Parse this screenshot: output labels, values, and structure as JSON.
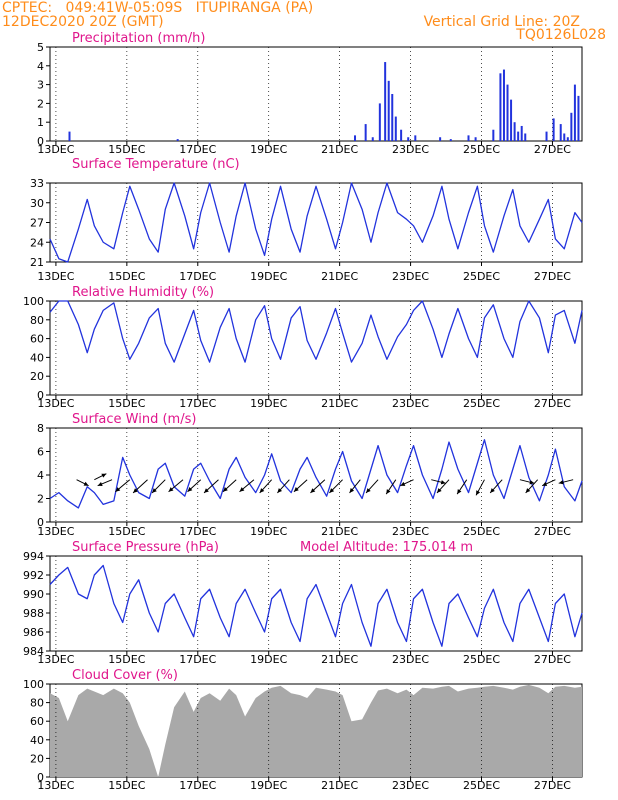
{
  "header": {
    "line1_left": "CPTEC:   049:41W-05:09S   ITUPIRANGA (PA)",
    "line2_left": "12DEC2020 20Z (GMT)",
    "line1_right": "Vertical Grid Line: 20Z",
    "line2_right": "TQ0126L028"
  },
  "colors": {
    "header": "#ff8c1a",
    "title": "#e0168c",
    "series": "#2233dd",
    "cloud": "#a9a9a9",
    "axis": "#000000"
  },
  "x_tick_labels": [
    "13DEC",
    "15DEC",
    "17DEC",
    "19DEC",
    "21DEC",
    "23DEC",
    "25DEC",
    "27DEC"
  ],
  "chart_data": [
    {
      "type": "bar",
      "title": "Precipitation (mm/h)",
      "ylim": [
        0,
        5
      ],
      "yticks": [
        0,
        1,
        2,
        3,
        4,
        5
      ],
      "x_unit": "days since 12DEC2020 20Z",
      "x": [
        0.55,
        3.6,
        8.6,
        8.9,
        9.1,
        9.3,
        9.45,
        9.55,
        9.65,
        9.75,
        9.9,
        10.1,
        10.3,
        11.0,
        11.3,
        11.8,
        12.0,
        12.5,
        12.7,
        12.8,
        12.9,
        13.0,
        13.1,
        13.2,
        13.3,
        13.4,
        14.0,
        14.2,
        14.4,
        14.5,
        14.6,
        14.7,
        14.8,
        14.9
      ],
      "values": [
        0.5,
        0.1,
        0.3,
        0.9,
        0.2,
        2.0,
        4.2,
        3.2,
        2.5,
        1.3,
        0.6,
        0.2,
        0.3,
        0.2,
        0.1,
        0.3,
        0.2,
        0.6,
        3.6,
        3.8,
        3.0,
        2.2,
        1.0,
        0.5,
        0.8,
        0.4,
        0.5,
        1.2,
        0.9,
        0.4,
        0.2,
        1.5,
        3.0,
        2.4
      ]
    },
    {
      "type": "line",
      "title": "Surface Temperature (nC)",
      "ylim": [
        21,
        33
      ],
      "yticks": [
        21,
        24,
        27,
        30,
        33
      ],
      "x_unit": "days since 12DEC2020 20Z",
      "x": [
        0.0,
        0.25,
        0.5,
        0.8,
        1.05,
        1.25,
        1.5,
        1.8,
        2.05,
        2.25,
        2.5,
        2.8,
        3.05,
        3.25,
        3.5,
        3.8,
        4.05,
        4.25,
        4.5,
        4.8,
        5.05,
        5.25,
        5.5,
        5.8,
        6.05,
        6.25,
        6.5,
        6.8,
        7.05,
        7.25,
        7.5,
        7.8,
        8.05,
        8.25,
        8.5,
        8.8,
        9.05,
        9.25,
        9.5,
        9.8,
        10.05,
        10.25,
        10.5,
        10.8,
        11.05,
        11.25,
        11.5,
        11.8,
        12.05,
        12.25,
        12.5,
        12.8,
        13.05,
        13.25,
        13.5,
        13.8,
        14.05,
        14.25,
        14.5,
        14.8,
        15.0
      ],
      "values": [
        24.5,
        21.5,
        21.0,
        26.0,
        30.5,
        26.5,
        24.0,
        23.0,
        28.5,
        32.5,
        29.0,
        24.5,
        22.5,
        29.0,
        33.0,
        28.0,
        23.0,
        28.5,
        33.0,
        27.0,
        22.5,
        28.0,
        33.0,
        26.0,
        22.0,
        27.5,
        32.5,
        26.0,
        22.5,
        28.0,
        32.5,
        27.5,
        23.0,
        27.0,
        33.0,
        29.0,
        24.0,
        28.5,
        33.0,
        28.5,
        27.5,
        26.5,
        24.0,
        28.0,
        32.5,
        27.5,
        23.0,
        28.5,
        32.5,
        26.5,
        22.5,
        28.0,
        32.0,
        26.5,
        24.0,
        27.5,
        30.5,
        24.5,
        23.0,
        28.5,
        27.0
      ]
    },
    {
      "type": "line",
      "title": "Relative Humidity (%)",
      "ylim": [
        0,
        100
      ],
      "yticks": [
        0,
        20,
        40,
        60,
        80,
        100
      ],
      "x_unit": "days since 12DEC2020 20Z",
      "x": [
        0.0,
        0.25,
        0.5,
        0.8,
        1.05,
        1.25,
        1.5,
        1.8,
        2.05,
        2.25,
        2.5,
        2.8,
        3.05,
        3.25,
        3.5,
        3.8,
        4.05,
        4.25,
        4.5,
        4.8,
        5.05,
        5.25,
        5.5,
        5.8,
        6.05,
        6.25,
        6.5,
        6.8,
        7.05,
        7.25,
        7.5,
        7.8,
        8.05,
        8.25,
        8.5,
        8.8,
        9.05,
        9.25,
        9.5,
        9.8,
        10.05,
        10.25,
        10.5,
        10.8,
        11.05,
        11.25,
        11.5,
        11.8,
        12.05,
        12.25,
        12.5,
        12.8,
        13.05,
        13.25,
        13.5,
        13.8,
        14.05,
        14.25,
        14.5,
        14.8,
        15.0
      ],
      "values": [
        88.0,
        100.0,
        100.0,
        75.0,
        45.0,
        70.0,
        90.0,
        98.0,
        60.0,
        38.0,
        55.0,
        82.0,
        92.0,
        55.0,
        35.0,
        65.0,
        90.0,
        58.0,
        35.0,
        72.0,
        92.0,
        60.0,
        35.0,
        80.0,
        95.0,
        60.0,
        38.0,
        82.0,
        94.0,
        58.0,
        38.0,
        66.0,
        92.0,
        66.0,
        35.0,
        55.0,
        85.0,
        62.0,
        38.0,
        62.0,
        75.0,
        90.0,
        100.0,
        70.0,
        40.0,
        65.0,
        92.0,
        60.0,
        40.0,
        82.0,
        96.0,
        60.0,
        40.0,
        78.0,
        100.0,
        82.0,
        45.0,
        85.0,
        90.0,
        55.0,
        90.0
      ]
    },
    {
      "type": "line",
      "title": "Surface Wind (m/s)",
      "ylim": [
        0,
        8
      ],
      "yticks": [
        0,
        2,
        4,
        6,
        8
      ],
      "x_unit": "days since 12DEC2020 20Z",
      "x": [
        0.0,
        0.25,
        0.5,
        0.8,
        1.05,
        1.25,
        1.5,
        1.8,
        2.05,
        2.25,
        2.5,
        2.8,
        3.05,
        3.25,
        3.5,
        3.8,
        4.05,
        4.25,
        4.5,
        4.8,
        5.05,
        5.25,
        5.5,
        5.8,
        6.05,
        6.25,
        6.5,
        6.8,
        7.05,
        7.25,
        7.5,
        7.8,
        8.05,
        8.25,
        8.5,
        8.8,
        9.05,
        9.25,
        9.5,
        9.8,
        10.05,
        10.25,
        10.5,
        10.8,
        11.05,
        11.25,
        11.5,
        11.8,
        12.05,
        12.25,
        12.5,
        12.8,
        13.05,
        13.25,
        13.5,
        13.8,
        14.05,
        14.25,
        14.5,
        14.8,
        15.0
      ],
      "values": [
        2.0,
        2.5,
        1.8,
        1.2,
        3.0,
        2.5,
        1.5,
        1.8,
        5.5,
        4.0,
        2.5,
        2.0,
        4.5,
        5.0,
        3.0,
        2.2,
        4.5,
        5.0,
        3.5,
        2.0,
        4.5,
        5.5,
        3.8,
        2.5,
        4.0,
        5.8,
        3.5,
        2.5,
        4.5,
        5.5,
        3.8,
        2.2,
        4.5,
        6.0,
        3.5,
        2.0,
        4.5,
        6.5,
        4.0,
        2.5,
        4.8,
        6.5,
        4.0,
        2.0,
        4.5,
        6.8,
        4.5,
        2.5,
        5.0,
        7.0,
        4.0,
        2.0,
        4.5,
        6.5,
        3.8,
        1.8,
        4.0,
        6.2,
        3.0,
        1.8,
        3.5
      ],
      "wind_barbs": [
        {
          "x": 0.75,
          "u": -1.0,
          "v": 0.5
        },
        {
          "x": 1.25,
          "u": -1.0,
          "v": -0.5
        },
        {
          "x": 1.75,
          "u": 1.2,
          "v": 0.5
        },
        {
          "x": 2.25,
          "u": 1.2,
          "v": 1.0
        },
        {
          "x": 2.75,
          "u": 1.2,
          "v": 1.1
        },
        {
          "x": 3.25,
          "u": 1.1,
          "v": 1.1
        },
        {
          "x": 3.75,
          "u": 1.2,
          "v": 1.0
        },
        {
          "x": 4.25,
          "u": 1.1,
          "v": 1.0
        },
        {
          "x": 4.75,
          "u": 1.2,
          "v": 1.1
        },
        {
          "x": 5.25,
          "u": 1.1,
          "v": 1.0
        },
        {
          "x": 5.75,
          "u": 1.2,
          "v": 1.0
        },
        {
          "x": 6.25,
          "u": 1.0,
          "v": 1.1
        },
        {
          "x": 6.75,
          "u": 1.0,
          "v": 1.1
        },
        {
          "x": 7.25,
          "u": 1.1,
          "v": 1.0
        },
        {
          "x": 7.75,
          "u": 1.2,
          "v": 1.1
        },
        {
          "x": 8.25,
          "u": 1.1,
          "v": 1.1
        },
        {
          "x": 8.75,
          "u": 0.9,
          "v": 1.1
        },
        {
          "x": 9.25,
          "u": 1.0,
          "v": 1.1
        },
        {
          "x": 9.75,
          "u": 0.8,
          "v": 1.2
        },
        {
          "x": 10.25,
          "u": 1.1,
          "v": 0.5
        },
        {
          "x": 10.75,
          "u": -1.2,
          "v": 0.3
        },
        {
          "x": 11.25,
          "u": 1.0,
          "v": 1.1
        },
        {
          "x": 11.75,
          "u": 0.8,
          "v": 1.2
        },
        {
          "x": 12.25,
          "u": 0.7,
          "v": 1.3
        },
        {
          "x": 12.75,
          "u": 1.0,
          "v": 1.1
        },
        {
          "x": 13.25,
          "u": -1.2,
          "v": 0.3
        },
        {
          "x": 13.75,
          "u": 1.0,
          "v": 1.1
        },
        {
          "x": 14.25,
          "u": 1.1,
          "v": 0.5
        },
        {
          "x": 14.75,
          "u": 1.2,
          "v": 0.3
        }
      ]
    },
    {
      "type": "line",
      "title": "Surface Pressure (hPa)",
      "subtitle": "Model Altitude: 175.014 m",
      "ylim": [
        984,
        994
      ],
      "yticks": [
        984,
        986,
        988,
        990,
        992,
        994
      ],
      "x_unit": "days since 12DEC2020 20Z",
      "x": [
        0.0,
        0.25,
        0.5,
        0.8,
        1.05,
        1.25,
        1.5,
        1.8,
        2.05,
        2.25,
        2.5,
        2.8,
        3.05,
        3.25,
        3.5,
        3.8,
        4.05,
        4.25,
        4.5,
        4.8,
        5.05,
        5.25,
        5.5,
        5.8,
        6.05,
        6.25,
        6.5,
        6.8,
        7.05,
        7.25,
        7.5,
        7.8,
        8.05,
        8.25,
        8.5,
        8.8,
        9.05,
        9.25,
        9.5,
        9.8,
        10.05,
        10.25,
        10.5,
        10.8,
        11.05,
        11.25,
        11.5,
        11.8,
        12.05,
        12.25,
        12.5,
        12.8,
        13.05,
        13.25,
        13.5,
        13.8,
        14.05,
        14.25,
        14.5,
        14.8,
        15.0
      ],
      "values": [
        991.0,
        992.0,
        992.8,
        990.0,
        989.5,
        992.0,
        993.0,
        989.0,
        987.0,
        990.0,
        991.5,
        988.0,
        986.0,
        989.0,
        990.0,
        987.5,
        985.5,
        989.5,
        990.5,
        987.5,
        985.5,
        989.0,
        990.5,
        988.0,
        986.0,
        989.5,
        990.5,
        987.0,
        985.0,
        989.5,
        991.0,
        988.0,
        985.5,
        989.0,
        991.0,
        987.0,
        984.5,
        989.0,
        990.5,
        987.0,
        985.0,
        989.5,
        990.5,
        987.0,
        984.5,
        989.0,
        990.0,
        987.5,
        985.5,
        988.5,
        990.5,
        987.0,
        985.0,
        989.0,
        990.5,
        987.5,
        985.0,
        989.0,
        990.0,
        985.5,
        988.0
      ]
    },
    {
      "type": "area",
      "title": "Cloud Cover (%)",
      "ylim": [
        0,
        100
      ],
      "yticks": [
        0,
        20,
        40,
        60,
        80,
        100
      ],
      "x_unit": "days since 12DEC2020 20Z",
      "x": [
        0.0,
        0.25,
        0.5,
        0.8,
        1.05,
        1.25,
        1.5,
        1.8,
        2.05,
        2.25,
        2.5,
        2.8,
        3.05,
        3.25,
        3.5,
        3.8,
        4.05,
        4.25,
        4.5,
        4.8,
        5.05,
        5.25,
        5.5,
        5.8,
        6.05,
        6.25,
        6.5,
        6.8,
        7.05,
        7.25,
        7.5,
        7.8,
        8.05,
        8.25,
        8.5,
        8.8,
        9.05,
        9.25,
        9.5,
        9.8,
        10.05,
        10.25,
        10.5,
        10.8,
        11.05,
        11.25,
        11.5,
        11.8,
        12.05,
        12.25,
        12.5,
        12.8,
        13.05,
        13.25,
        13.5,
        13.8,
        14.05,
        14.25,
        14.5,
        14.8,
        15.0
      ],
      "values": [
        90.0,
        85.0,
        60.0,
        88.0,
        95.0,
        92.0,
        88.0,
        95.0,
        90.0,
        80.0,
        55.0,
        30.0,
        0.0,
        35.0,
        75.0,
        92.0,
        70.0,
        85.0,
        90.0,
        82.0,
        95.0,
        88.0,
        65.0,
        85.0,
        92.0,
        96.0,
        98.0,
        90.0,
        88.0,
        85.0,
        96.0,
        94.0,
        92.0,
        88.0,
        60.0,
        62.0,
        80.0,
        93.0,
        95.0,
        90.0,
        94.0,
        88.0,
        96.0,
        95.0,
        97.0,
        98.0,
        92.0,
        95.0,
        96.0,
        97.0,
        98.0,
        96.0,
        94.0,
        97.0,
        99.0,
        96.0,
        90.0,
        97.0,
        98.0,
        96.0,
        97.0
      ]
    }
  ]
}
